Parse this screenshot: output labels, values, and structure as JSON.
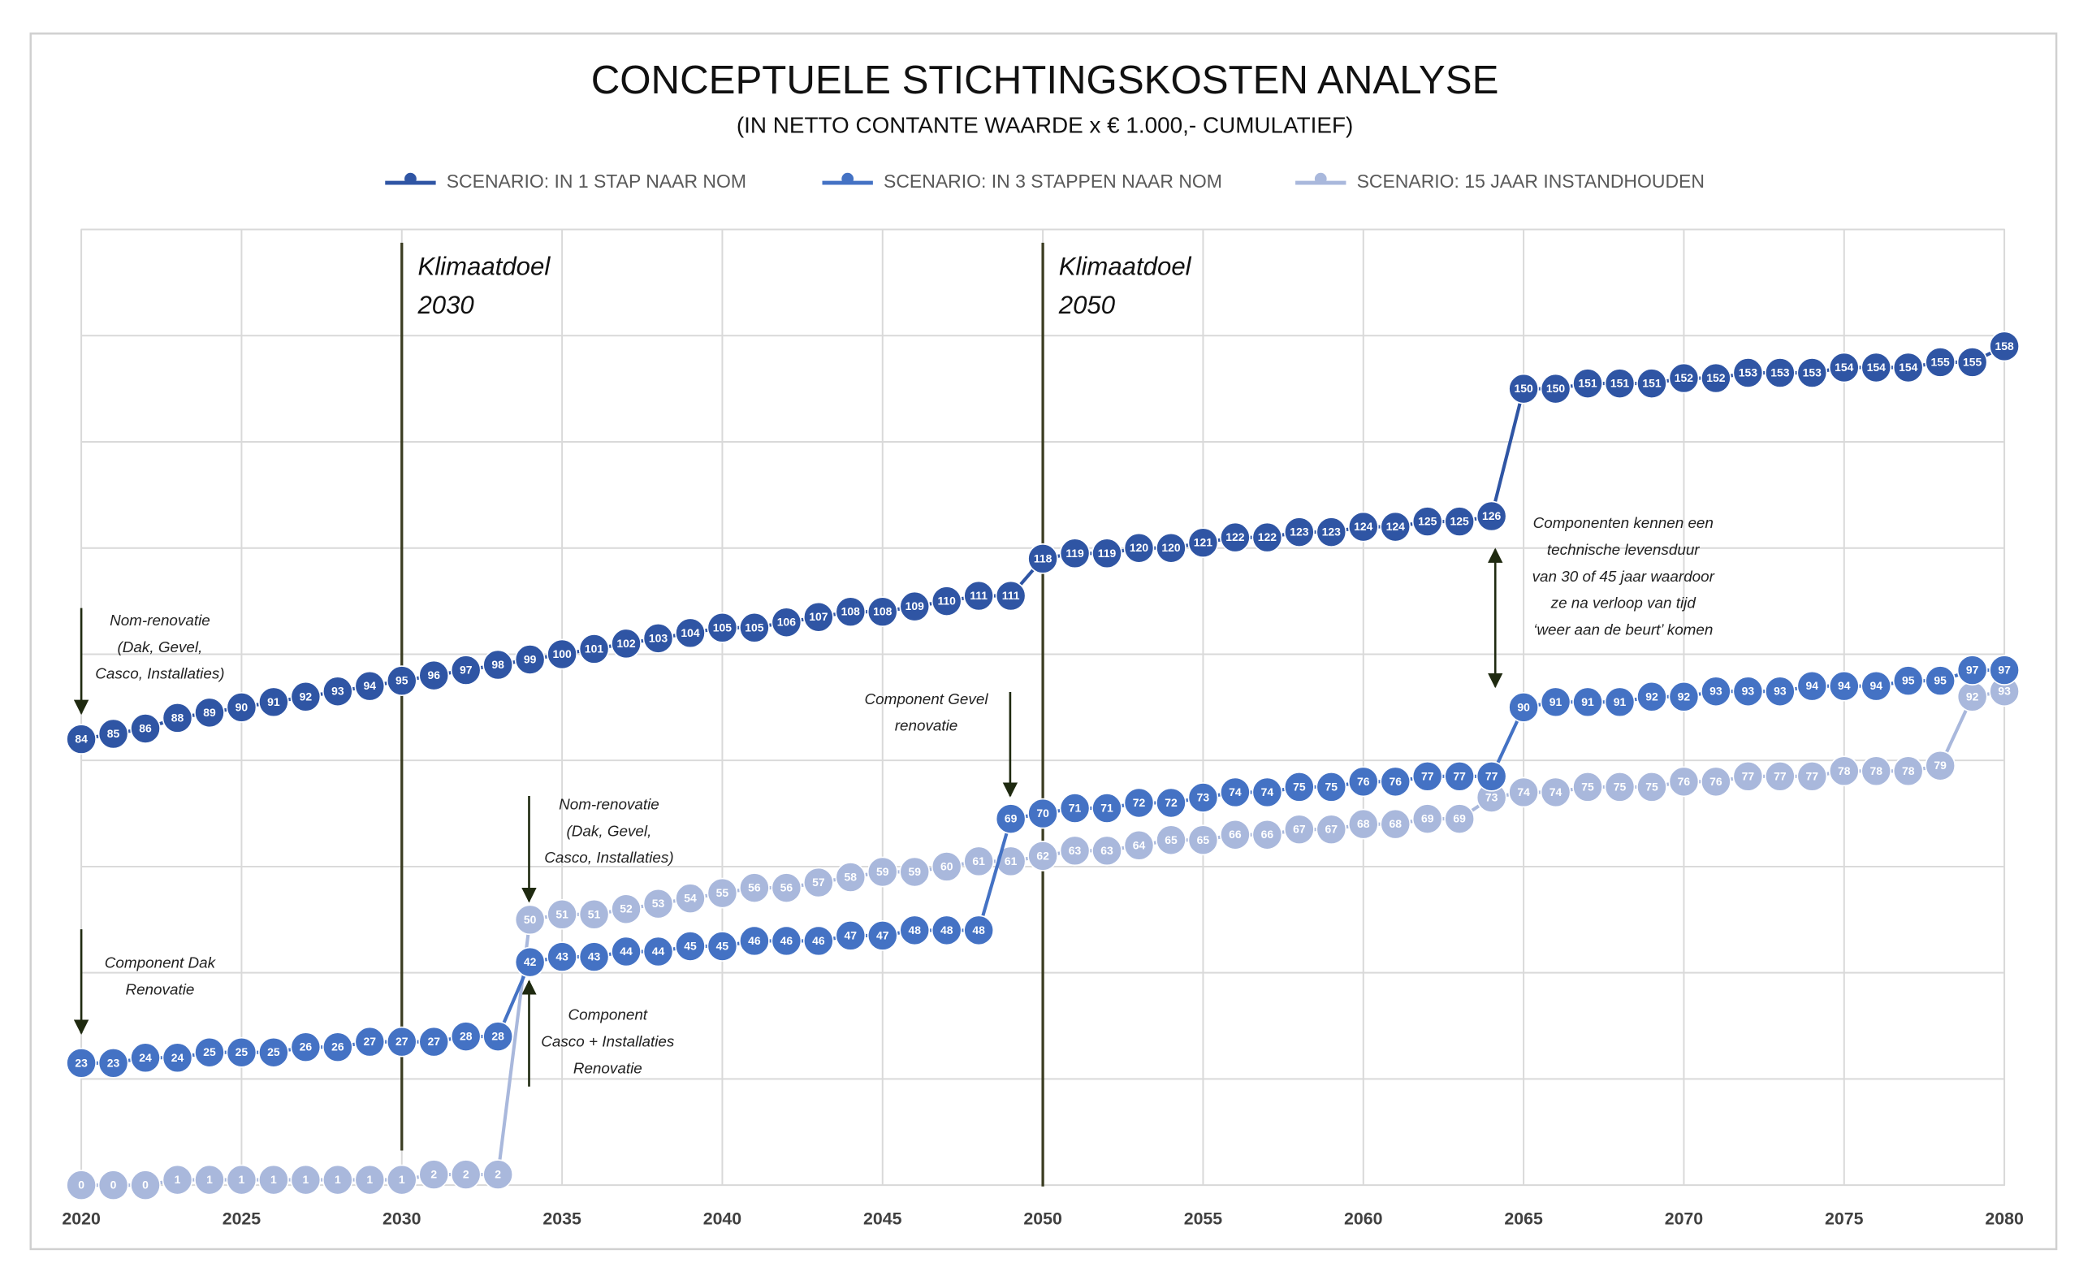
{
  "chart_data": {
    "type": "line",
    "title": "CONCEPTUELE STICHTINGSKOSTEN ANALYSE",
    "subtitle": "(IN NETTO CONTANTE WAARDE x € 1.000,- CUMULATIEF)",
    "x": [
      2020,
      2021,
      2022,
      2023,
      2024,
      2025,
      2026,
      2027,
      2028,
      2029,
      2030,
      2031,
      2032,
      2033,
      2034,
      2035,
      2036,
      2037,
      2038,
      2039,
      2040,
      2041,
      2042,
      2043,
      2044,
      2045,
      2046,
      2047,
      2048,
      2049,
      2050,
      2051,
      2052,
      2053,
      2054,
      2055,
      2056,
      2057,
      2058,
      2059,
      2060,
      2061,
      2062,
      2063,
      2064,
      2065,
      2066,
      2067,
      2068,
      2069,
      2070,
      2071,
      2072,
      2073,
      2074,
      2075,
      2076,
      2077,
      2078,
      2079,
      2080
    ],
    "series": [
      {
        "name": "SCENARIO: IN 1 STAP NAAR NOM",
        "color": "#2f55a4",
        "values": [
          84,
          85,
          86,
          88,
          89,
          90,
          91,
          92,
          93,
          94,
          95,
          96,
          97,
          98,
          99,
          100,
          101,
          102,
          103,
          104,
          105,
          105,
          106,
          107,
          108,
          108,
          109,
          110,
          111,
          111,
          118,
          119,
          119,
          120,
          120,
          121,
          122,
          122,
          123,
          123,
          124,
          124,
          125,
          125,
          126,
          150,
          150,
          151,
          151,
          151,
          152,
          152,
          153,
          153,
          153,
          154,
          154,
          154,
          155,
          155,
          158
        ]
      },
      {
        "name": "SCENARIO: IN 3 STAPPEN NAAR NOM",
        "color": "#4472c4",
        "values": [
          23,
          23,
          24,
          24,
          25,
          25,
          25,
          26,
          26,
          27,
          27,
          27,
          28,
          28,
          42,
          43,
          43,
          44,
          44,
          45,
          45,
          46,
          46,
          46,
          47,
          47,
          48,
          48,
          48,
          69,
          70,
          71,
          71,
          72,
          72,
          73,
          74,
          74,
          75,
          75,
          76,
          76,
          77,
          77,
          77,
          90,
          91,
          91,
          91,
          92,
          92,
          93,
          93,
          93,
          94,
          94,
          94,
          95,
          95,
          97,
          97
        ]
      },
      {
        "name": "SCENARIO: 15 JAAR INSTANDHOUDEN",
        "color": "#a9b8dc",
        "values": [
          0,
          0,
          0,
          1,
          1,
          1,
          1,
          1,
          1,
          1,
          1,
          2,
          2,
          2,
          50,
          51,
          51,
          52,
          53,
          54,
          55,
          56,
          56,
          57,
          58,
          59,
          59,
          60,
          61,
          61,
          62,
          63,
          63,
          64,
          65,
          65,
          66,
          66,
          67,
          67,
          68,
          68,
          69,
          69,
          73,
          74,
          74,
          75,
          75,
          75,
          76,
          76,
          77,
          77,
          77,
          78,
          78,
          78,
          79,
          92,
          93
        ]
      }
    ],
    "xlim": [
      2020,
      2080
    ],
    "xticks": [
      2020,
      2025,
      2030,
      2035,
      2040,
      2045,
      2050,
      2055,
      2060,
      2065,
      2070,
      2075,
      2080
    ],
    "ylim": [
      0,
      180
    ],
    "yticks": [
      0,
      20,
      40,
      60,
      80,
      100,
      120,
      140,
      160,
      180
    ],
    "grid": true,
    "legend": "top",
    "markers": [
      {
        "x": 2030,
        "label": [
          "Klimaatdoel",
          "2030"
        ]
      },
      {
        "x": 2050,
        "label": [
          "Klimaatdoel",
          "2050"
        ]
      }
    ],
    "annotations": [
      [
        "Nom-renovatie",
        "(Dak, Gevel,",
        "Casco, Installaties)"
      ],
      [
        "Component Dak",
        "Renovatie"
      ],
      [
        "Nom-renovatie",
        "(Dak, Gevel,",
        "Casco, Installaties)"
      ],
      [
        "Component",
        "Casco + Installaties",
        "Renovatie"
      ],
      [
        "Component Gevel",
        "renovatie"
      ],
      [
        "Componenten kennen een",
        "technische levensduur",
        "van 30 of 45 jaar waardoor",
        "ze na verloop van tijd",
        "‘weer aan de beurt’ komen"
      ]
    ]
  }
}
